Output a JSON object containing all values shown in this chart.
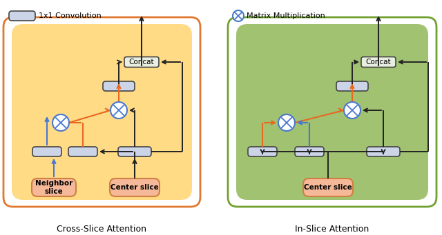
{
  "fig_width": 6.4,
  "fig_height": 3.41,
  "dpi": 100,
  "bg_color": "#ffffff",
  "orange_border": "#e07830",
  "green_border": "#70a030",
  "orange_bg": "#ffd878",
  "green_bg": "#90b858",
  "box_fill": "#ccd4e8",
  "box_edge": "#444444",
  "input_fill": "#f5b898",
  "input_edge": "#d08040",
  "concat_fill": "#e8eee0",
  "concat_edge": "#444444",
  "orange_line": "#e86820",
  "blue_line": "#4878d0",
  "black_line": "#222222",
  "title_left": "Cross-Slice Attention",
  "title_right": "In-Slice Attention",
  "legend_conv": "1x1 Convolution",
  "legend_matmul": "Matrix Multiplication",
  "label_neighbor": "Neighbor\nslice",
  "label_center_left": "Center slice",
  "label_center_right": "Center slice",
  "label_concat": "Concat"
}
